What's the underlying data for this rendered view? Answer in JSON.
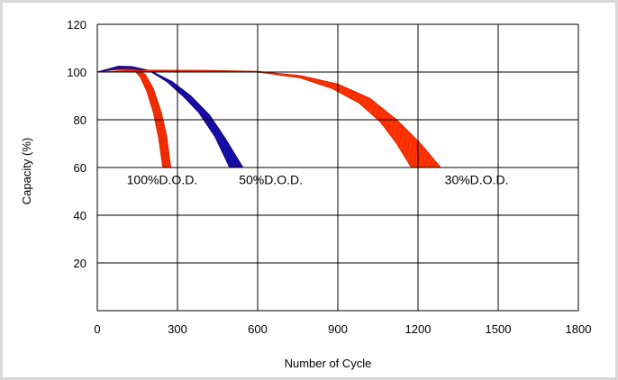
{
  "chart_data": {
    "type": "area",
    "title": "",
    "xlabel": "Number of Cycle",
    "ylabel": "Capacity (%)",
    "xlim": [
      0,
      1800
    ],
    "ylim": [
      0,
      120
    ],
    "x_ticks": [
      "0",
      "300",
      "600",
      "900",
      "1200",
      "1500",
      "1800"
    ],
    "y_ticks": [
      "20",
      "40",
      "60",
      "80",
      "100",
      "120"
    ],
    "grid": true,
    "colors": {
      "red": "#ff3300",
      "blue": "#1a10b0",
      "red_edge": "#dd2200",
      "blue_edge": "#0b0070"
    },
    "series": [
      {
        "name": "100%D.O.D.",
        "color": "#ff3300",
        "upper": [
          [
            0,
            100
          ],
          [
            50,
            101.5
          ],
          [
            100,
            102
          ],
          [
            150,
            101.3
          ],
          [
            180,
            99
          ],
          [
            210,
            93
          ],
          [
            240,
            83
          ],
          [
            260,
            73
          ],
          [
            275,
            60
          ]
        ],
        "lower": [
          [
            0,
            100
          ],
          [
            50,
            100.8
          ],
          [
            100,
            100.8
          ],
          [
            140,
            100.5
          ],
          [
            160,
            98
          ],
          [
            185,
            92
          ],
          [
            210,
            83
          ],
          [
            230,
            72
          ],
          [
            245,
            60
          ]
        ]
      },
      {
        "name": "50%D.O.D.",
        "color": "#1a10b0",
        "upper": [
          [
            0,
            100
          ],
          [
            80,
            102.5
          ],
          [
            130,
            102.3
          ],
          [
            200,
            100.5
          ],
          [
            280,
            96
          ],
          [
            350,
            90
          ],
          [
            420,
            82
          ],
          [
            480,
            72
          ],
          [
            545,
            60
          ]
        ],
        "lower": [
          [
            0,
            100
          ],
          [
            80,
            101.5
          ],
          [
            130,
            101.5
          ],
          [
            200,
            100.2
          ],
          [
            260,
            96
          ],
          [
            320,
            90
          ],
          [
            380,
            83
          ],
          [
            440,
            73
          ],
          [
            495,
            60
          ]
        ]
      },
      {
        "name": "30%D.O.D.",
        "color": "#ff3300",
        "upper": [
          [
            0,
            100
          ],
          [
            200,
            100.8
          ],
          [
            400,
            100.7
          ],
          [
            600,
            100.3
          ],
          [
            760,
            98.5
          ],
          [
            900,
            95
          ],
          [
            1020,
            89
          ],
          [
            1120,
            80
          ],
          [
            1210,
            70
          ],
          [
            1285,
            60
          ]
        ],
        "lower": [
          [
            0,
            100
          ],
          [
            200,
            100.3
          ],
          [
            400,
            100.2
          ],
          [
            600,
            100
          ],
          [
            760,
            97.5
          ],
          [
            880,
            93
          ],
          [
            980,
            87
          ],
          [
            1060,
            79
          ],
          [
            1120,
            70
          ],
          [
            1175,
            60
          ]
        ]
      }
    ],
    "annotations": [
      {
        "text": "100%D.O.D.",
        "x": 110,
        "y": 55
      },
      {
        "text": "50%D.O.D.",
        "x": 530,
        "y": 55
      },
      {
        "text": "30%D.O.D.",
        "x": 1300,
        "y": 55
      }
    ]
  }
}
